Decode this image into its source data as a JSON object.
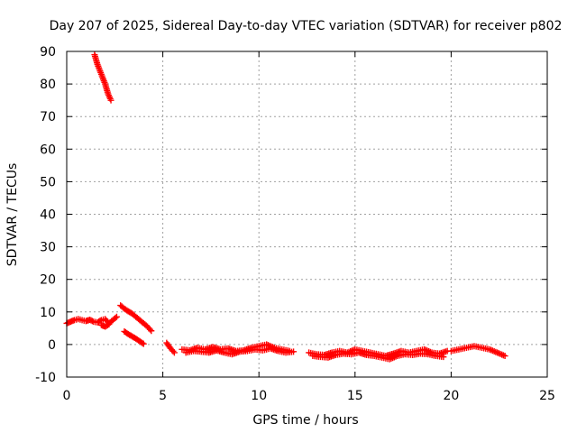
{
  "chart_data": {
    "type": "scatter",
    "title": "Day 207 of 2025, Sidereal Day-to-day VTEC variation (SDTVAR) for receiver p802",
    "xlabel": "GPS time / hours",
    "ylabel": "SDTVAR / TECUs",
    "xlim": [
      0,
      25
    ],
    "ylim": [
      -10,
      90
    ],
    "xticks": [
      0,
      5,
      10,
      15,
      20,
      25
    ],
    "yticks": [
      -10,
      0,
      10,
      20,
      30,
      40,
      50,
      60,
      70,
      80,
      90
    ],
    "grid": true,
    "legend": "none",
    "marker": "+",
    "color": "#ff0000",
    "series": [
      {
        "name": "SDTVAR",
        "segments": [
          {
            "x": [
              1.45,
              1.6,
              1.8,
              2.0,
              2.15,
              2.3
            ],
            "y": [
              89,
              86,
              83,
              80,
              77,
              75
            ]
          },
          {
            "x": [
              0.0,
              0.2,
              0.4,
              0.6,
              0.8,
              1.0,
              1.2,
              1.4,
              1.6,
              1.8,
              2.0,
              2.2,
              2.4,
              2.6
            ],
            "y": [
              6.5,
              7.0,
              7.5,
              7.8,
              7.5,
              7.2,
              7.6,
              7.0,
              6.8,
              7.5,
              7.8,
              6.5,
              7.5,
              8.5
            ]
          },
          {
            "x": [
              1.8,
              2.0,
              2.2
            ],
            "y": [
              6.0,
              5.5,
              6.2
            ]
          },
          {
            "x": [
              2.8,
              3.0,
              3.2,
              3.4,
              3.6,
              3.8,
              4.0,
              4.2,
              4.4
            ],
            "y": [
              12,
              11,
              10.2,
              9.5,
              8.5,
              7.5,
              6.5,
              5.5,
              4.2
            ]
          },
          {
            "x": [
              3.0,
              3.2,
              3.4,
              3.6,
              3.8,
              4.0
            ],
            "y": [
              4.0,
              3.2,
              2.5,
              1.8,
              1.0,
              0.2
            ]
          },
          {
            "x": [
              5.2,
              5.4,
              5.6
            ],
            "y": [
              0.5,
              -1.2,
              -2.5
            ]
          },
          {
            "x": [
              6.0,
              6.4,
              6.8,
              7.2,
              7.6,
              8.0,
              8.4,
              8.8,
              9.2,
              9.6,
              10.0,
              10.4,
              10.8,
              11.2,
              11.6
            ],
            "y": [
              -1.5,
              -1.8,
              -1.0,
              -1.5,
              -0.8,
              -1.5,
              -1.2,
              -2.0,
              -1.8,
              -1.0,
              -0.5,
              0.0,
              -1.0,
              -1.5,
              -2.0
            ]
          },
          {
            "x": [
              6.2,
              6.6,
              7.0,
              7.4,
              7.8,
              8.2,
              8.6,
              9.0,
              9.4,
              9.8,
              10.2,
              10.6,
              11.0,
              11.4,
              11.8
            ],
            "y": [
              -2.5,
              -2.0,
              -2.2,
              -2.5,
              -1.8,
              -2.5,
              -3.0,
              -2.2,
              -2.0,
              -1.5,
              -1.8,
              -1.2,
              -2.0,
              -2.5,
              -2.2
            ]
          },
          {
            "x": [
              12.6,
              13.0,
              13.4,
              13.8,
              14.2,
              14.6,
              15.0,
              15.4,
              15.8,
              16.2,
              16.6,
              17.0,
              17.4,
              17.8,
              18.2,
              18.6,
              19.0,
              19.4,
              19.8
            ],
            "y": [
              -2.5,
              -3.0,
              -3.2,
              -2.5,
              -2.0,
              -2.5,
              -1.5,
              -2.0,
              -2.5,
              -3.0,
              -3.5,
              -2.8,
              -2.0,
              -2.5,
              -2.0,
              -1.5,
              -2.5,
              -2.8,
              -2.0
            ]
          },
          {
            "x": [
              12.8,
              13.2,
              13.6,
              14.0,
              14.4,
              14.8,
              15.2,
              15.6,
              16.0,
              16.4,
              16.8,
              17.2,
              17.6,
              18.0,
              18.4,
              18.8,
              19.2,
              19.6
            ],
            "y": [
              -3.5,
              -3.8,
              -4.0,
              -3.2,
              -2.8,
              -3.0,
              -2.5,
              -3.2,
              -3.5,
              -4.0,
              -4.5,
              -3.5,
              -3.0,
              -3.2,
              -2.8,
              -3.0,
              -3.5,
              -3.8
            ]
          },
          {
            "x": [
              20.0,
              20.4,
              20.8,
              21.2,
              21.6,
              22.0,
              22.4,
              22.8
            ],
            "y": [
              -2.0,
              -1.5,
              -1.0,
              -0.5,
              -1.0,
              -1.5,
              -2.5,
              -3.5
            ]
          }
        ]
      }
    ]
  }
}
